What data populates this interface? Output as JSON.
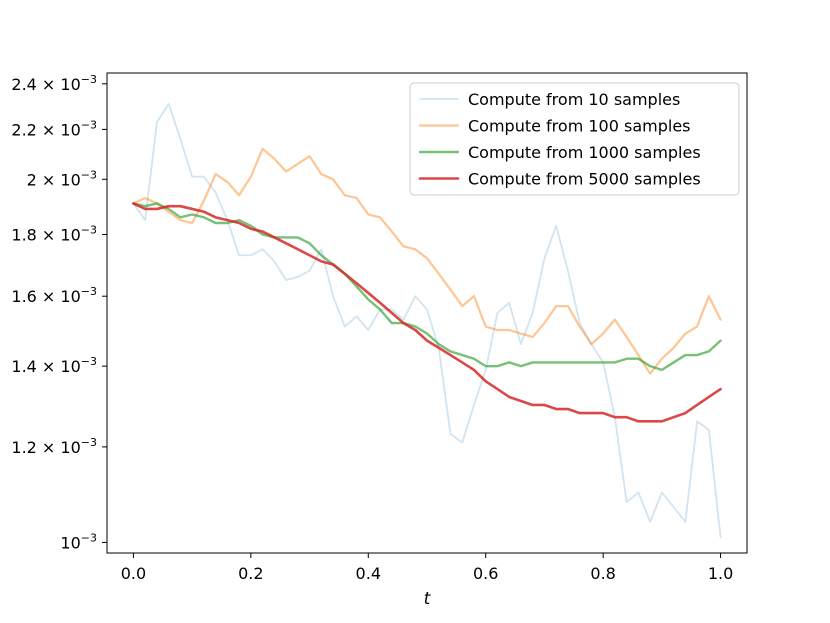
{
  "chart_data": {
    "type": "line",
    "title": "",
    "xlabel": "t",
    "ylabel": "",
    "xlim": [
      -0.045,
      1.045
    ],
    "ylim": [
      0.00098,
      0.00245
    ],
    "yscale": "log",
    "grid": false,
    "legend_position": "top-right",
    "x_ticks": [
      0.0,
      0.2,
      0.4,
      0.6,
      0.8,
      1.0
    ],
    "x_tick_labels": [
      "0.0",
      "0.2",
      "0.4",
      "0.6",
      "0.8",
      "1.0"
    ],
    "y_ticks": [
      {
        "value": 0.001,
        "mantissa": "",
        "exponent": "−3"
      },
      {
        "value": 0.0012,
        "mantissa": "1.2",
        "exponent": "−3"
      },
      {
        "value": 0.0014,
        "mantissa": "1.4",
        "exponent": "−3"
      },
      {
        "value": 0.0016,
        "mantissa": "1.6",
        "exponent": "−3"
      },
      {
        "value": 0.0018,
        "mantissa": "1.8",
        "exponent": "−3"
      },
      {
        "value": 0.002,
        "mantissa": "2",
        "exponent": "−3"
      },
      {
        "value": 0.0022,
        "mantissa": "2.2",
        "exponent": "−3"
      },
      {
        "value": 0.0024,
        "mantissa": "2.4",
        "exponent": "−3"
      }
    ],
    "x": [
      0.0,
      0.02,
      0.04,
      0.06,
      0.08,
      0.1,
      0.12,
      0.14,
      0.16,
      0.18,
      0.2,
      0.22,
      0.24,
      0.26,
      0.28,
      0.3,
      0.32,
      0.34,
      0.36,
      0.38,
      0.4,
      0.42,
      0.44,
      0.46,
      0.48,
      0.5,
      0.52,
      0.54,
      0.56,
      0.58,
      0.6,
      0.62,
      0.64,
      0.66,
      0.68,
      0.7,
      0.72,
      0.74,
      0.76,
      0.78,
      0.8,
      0.82,
      0.84,
      0.86,
      0.88,
      0.9,
      0.92,
      0.94,
      0.96,
      0.98,
      1.0
    ],
    "series": [
      {
        "name": "Compute from 10 samples",
        "color": "#1f77b4",
        "opacity": 0.2,
        "width": 1.8,
        "values": [
          0.00191,
          0.00185,
          0.00223,
          0.00231,
          0.00216,
          0.00201,
          0.00201,
          0.00195,
          0.00185,
          0.00173,
          0.00173,
          0.00175,
          0.00171,
          0.00165,
          0.00166,
          0.00168,
          0.00175,
          0.0016,
          0.00151,
          0.00154,
          0.0015,
          0.00156,
          0.00156,
          0.00153,
          0.0016,
          0.00156,
          0.00145,
          0.00123,
          0.00121,
          0.0013,
          0.00139,
          0.00155,
          0.00158,
          0.00146,
          0.00155,
          0.00172,
          0.00183,
          0.00168,
          0.00152,
          0.00146,
          0.00141,
          0.00127,
          0.00108,
          0.0011,
          0.00104,
          0.0011,
          0.00107,
          0.00104,
          0.00126,
          0.00124,
          0.00101
        ]
      },
      {
        "name": "Compute from 100 samples",
        "color": "#ff7f0e",
        "opacity": 0.45,
        "width": 2.2,
        "values": [
          0.00191,
          0.00193,
          0.00191,
          0.00188,
          0.00185,
          0.00184,
          0.00192,
          0.00202,
          0.00199,
          0.00194,
          0.00201,
          0.00212,
          0.00208,
          0.00203,
          0.00206,
          0.00209,
          0.00202,
          0.002,
          0.00194,
          0.00193,
          0.00187,
          0.00186,
          0.00181,
          0.00176,
          0.00175,
          0.00172,
          0.00167,
          0.00162,
          0.00157,
          0.0016,
          0.00151,
          0.0015,
          0.0015,
          0.00149,
          0.00148,
          0.00152,
          0.00157,
          0.00157,
          0.00151,
          0.00146,
          0.00149,
          0.00153,
          0.00148,
          0.00143,
          0.00138,
          0.00142,
          0.00145,
          0.00149,
          0.00151,
          0.0016,
          0.00153
        ]
      },
      {
        "name": "Compute from 1000 samples",
        "color": "#2ca02c",
        "opacity": 0.65,
        "width": 2.4,
        "values": [
          0.00191,
          0.0019,
          0.00191,
          0.00189,
          0.00186,
          0.00187,
          0.00186,
          0.00184,
          0.00184,
          0.00185,
          0.00183,
          0.0018,
          0.00179,
          0.00179,
          0.00179,
          0.00177,
          0.00173,
          0.0017,
          0.00167,
          0.00163,
          0.00159,
          0.00156,
          0.00152,
          0.00152,
          0.00151,
          0.00149,
          0.00146,
          0.00144,
          0.00143,
          0.00142,
          0.0014,
          0.0014,
          0.00141,
          0.0014,
          0.00141,
          0.00141,
          0.00141,
          0.00141,
          0.00141,
          0.00141,
          0.00141,
          0.00141,
          0.00142,
          0.00142,
          0.0014,
          0.00139,
          0.00141,
          0.00143,
          0.00143,
          0.00144,
          0.00147
        ]
      },
      {
        "name": "Compute from 5000 samples",
        "color": "#d62728",
        "opacity": 0.85,
        "width": 2.6,
        "values": [
          0.00191,
          0.00189,
          0.00189,
          0.0019,
          0.0019,
          0.00189,
          0.00188,
          0.00186,
          0.00185,
          0.00184,
          0.00182,
          0.00181,
          0.00179,
          0.00177,
          0.00175,
          0.00173,
          0.00171,
          0.0017,
          0.00167,
          0.00164,
          0.00161,
          0.00158,
          0.00155,
          0.00152,
          0.0015,
          0.00147,
          0.00145,
          0.00143,
          0.00141,
          0.00139,
          0.00136,
          0.00134,
          0.00132,
          0.00131,
          0.0013,
          0.0013,
          0.00129,
          0.00129,
          0.00128,
          0.00128,
          0.00128,
          0.00127,
          0.00127,
          0.00126,
          0.00126,
          0.00126,
          0.00127,
          0.00128,
          0.0013,
          0.00132,
          0.00134
        ]
      }
    ]
  }
}
